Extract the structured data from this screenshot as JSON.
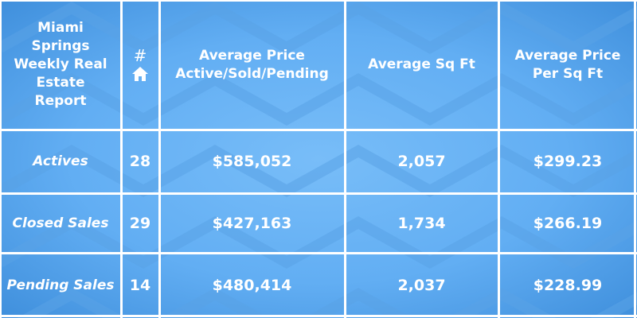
{
  "table": {
    "header": [
      "Miami Springs Weekly Real Estate Report",
      "#",
      "Average Price Active/Sold/Pending",
      "Average Sq Ft",
      "Average Price Per Sq Ft"
    ],
    "rows": [
      [
        "Actives",
        "28",
        "$585,052",
        "2,057",
        "$299.23"
      ],
      [
        "Closed Sales",
        "29",
        "$427,163",
        "1,734",
        "$266.19"
      ],
      [
        "Pending Sales",
        "14",
        "$480,414",
        "2,037",
        "$228.99"
      ]
    ]
  }
}
